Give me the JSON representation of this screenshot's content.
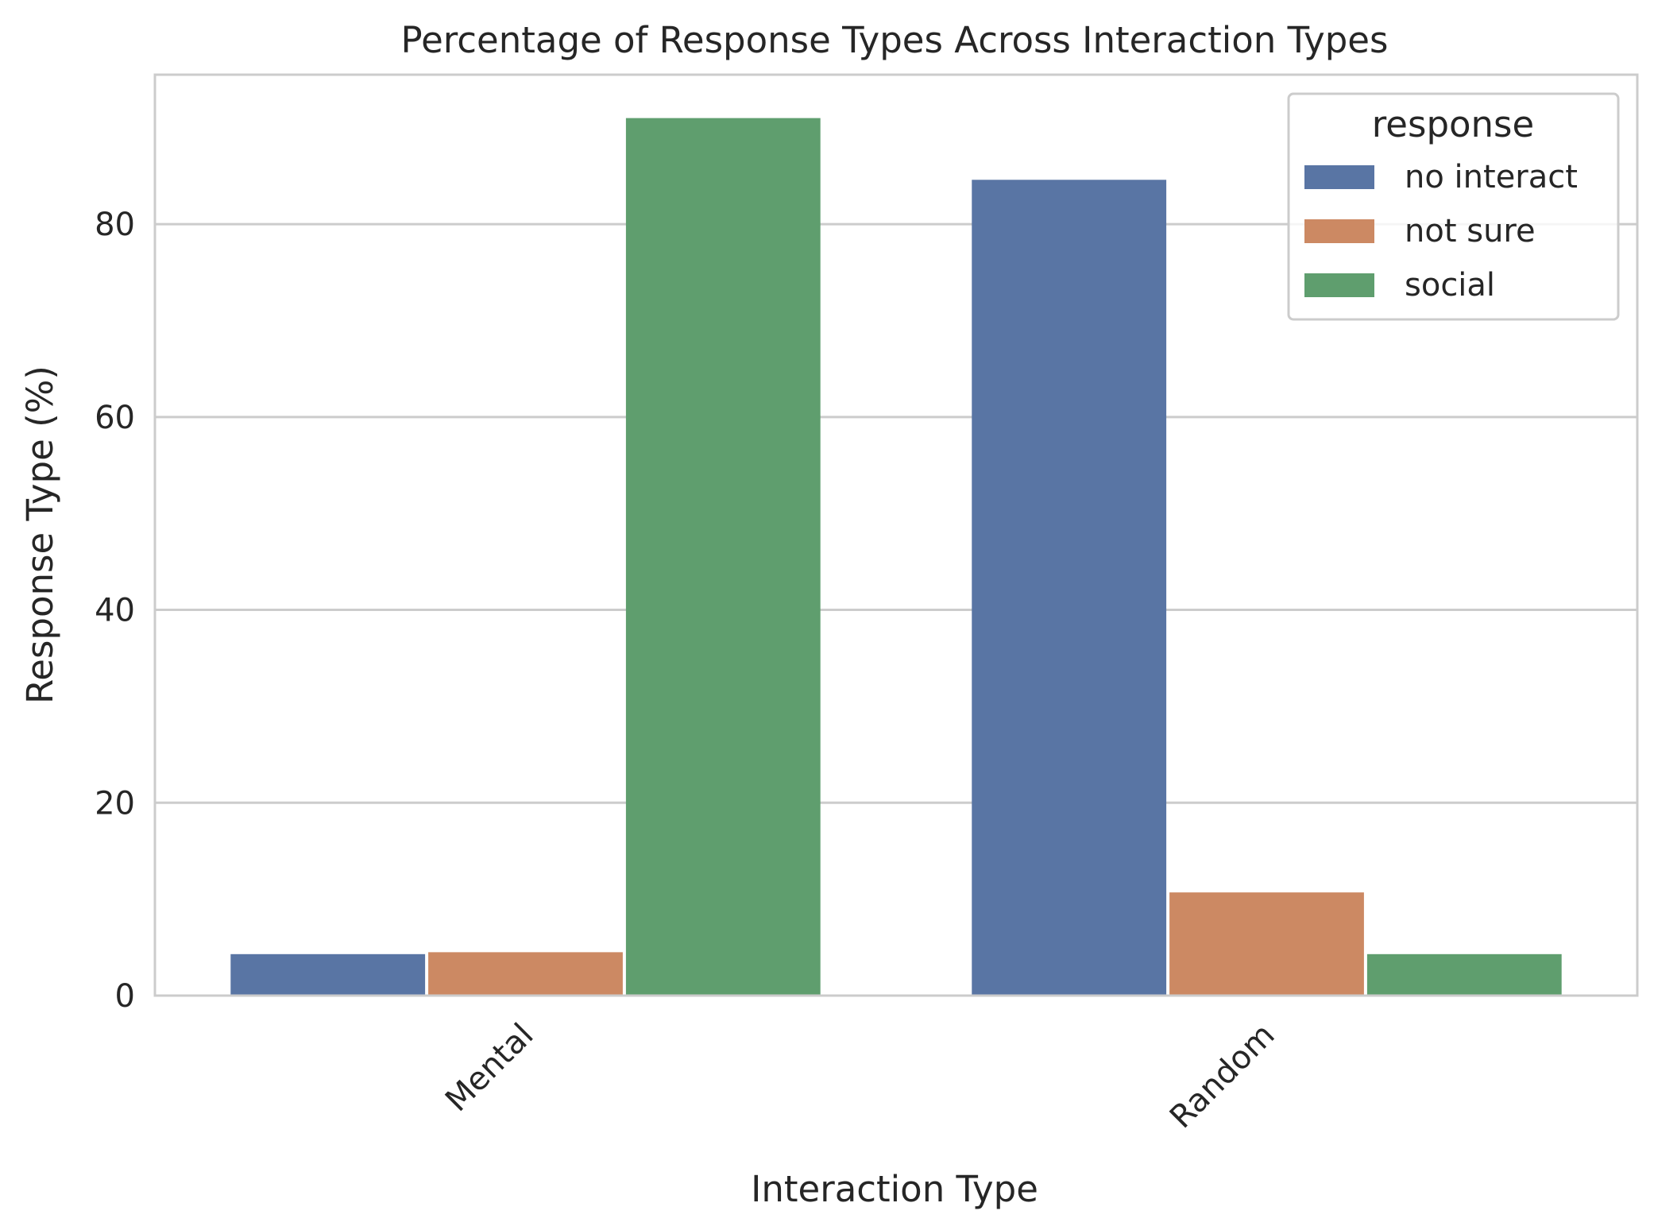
{
  "chart_data": {
    "type": "bar",
    "title": "Percentage of Response Types Across Interaction Types",
    "xlabel": "Interaction Type",
    "ylabel": "Response Type (%)",
    "categories": [
      "Mental",
      "Random"
    ],
    "ylim": [
      0,
      95.5
    ],
    "yticks": [
      0,
      20,
      40,
      60,
      80
    ],
    "grid": "horizontal",
    "legend": {
      "title": "response",
      "placement": "top-right"
    },
    "series": [
      {
        "name": "no interact",
        "color": "#5975a4",
        "values": [
          4.3,
          84.6
        ]
      },
      {
        "name": "not sure",
        "color": "#cc8963",
        "values": [
          4.5,
          10.7
        ]
      },
      {
        "name": "social",
        "color": "#5f9e6e",
        "values": [
          91.0,
          4.3
        ]
      }
    ]
  }
}
